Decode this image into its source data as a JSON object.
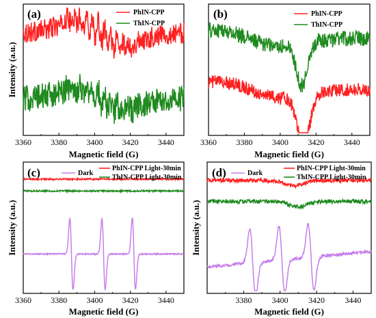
{
  "colors": {
    "red": "#ff2020",
    "green": "#1f8a1f",
    "purple": "#c77dea",
    "axis": "#000000"
  },
  "chart_data": [
    {
      "panel": "(a)",
      "type": "line",
      "xlabel": "Magnetic field  (G)",
      "ylabel": "Intensity (a.u.)",
      "xlim": [
        3360,
        3450
      ],
      "xticks": [
        3360,
        3380,
        3400,
        3420,
        3440
      ],
      "legend_position": "top-right",
      "series": [
        {
          "name": "PhIN-CPP",
          "color_key": "red",
          "signal": "epr_multiplet",
          "center": 3403,
          "spacing": 3.4,
          "lines": 11,
          "width": 1.3,
          "amplitude": 0.75,
          "noise": 0.08,
          "baseline": 0.78
        },
        {
          "name": "ThIN-CPP",
          "color_key": "green",
          "signal": "epr_multiplet",
          "center": 3403,
          "spacing": 3.4,
          "lines": 11,
          "width": 1.3,
          "amplitude": 0.6,
          "noise": 0.1,
          "baseline": 0.28
        }
      ],
      "ylim": [
        0,
        1
      ]
    },
    {
      "panel": "(b)",
      "type": "line",
      "xlabel": "Magnetic field  (G)",
      "ylabel": "",
      "xlim": [
        3360,
        3450
      ],
      "xticks": [
        3360,
        3380,
        3400,
        3420,
        3440
      ],
      "legend_position": "top-right",
      "series": [
        {
          "name": "PhIN-CPP",
          "color_key": "red",
          "signal": "broad_dip",
          "center": 3413,
          "width": 3.5,
          "amplitude": 0.38,
          "noise": 0.05,
          "baseline": 0.35
        },
        {
          "name": "ThIN-CPP",
          "color_key": "green",
          "signal": "broad_dip",
          "center": 3412,
          "width": 3.0,
          "amplitude": 0.32,
          "noise": 0.06,
          "baseline": 0.74
        }
      ],
      "ylim": [
        0,
        1
      ]
    },
    {
      "panel": "(c)",
      "type": "line",
      "xlabel": "Magnetic field  (G)",
      "ylabel": "Intensity (a.u.)",
      "xlim": [
        3360,
        3450
      ],
      "xticks": [
        3360,
        3380,
        3400,
        3420,
        3440
      ],
      "legend_position": "top",
      "series": [
        {
          "name": "Dark",
          "color_key": "purple",
          "signal": "triplet",
          "peaks": [
            3387,
            3405,
            3422
          ],
          "width": 0.9,
          "amplitude": 0.45,
          "noise": 0.005,
          "baseline": 0.3
        },
        {
          "name": "PhIN-CPP Light-30min",
          "color_key": "red",
          "signal": "flat",
          "noise": 0.006,
          "baseline": 0.87
        },
        {
          "name": "ThIN-CPP Light-30min",
          "color_key": "green",
          "signal": "flat",
          "noise": 0.006,
          "baseline": 0.78
        }
      ],
      "ylim": [
        0,
        1
      ]
    },
    {
      "panel": "(d)",
      "type": "line",
      "xlabel": "Magnetic field  (G)",
      "ylabel": "Intensity (a.u.)",
      "xlim": [
        3360,
        3450
      ],
      "xticks": [
        3380,
        3400,
        3420,
        3440
      ],
      "legend_position": "top",
      "series": [
        {
          "name": "Dark",
          "color_key": "purple",
          "signal": "triplet_sloped",
          "peaks": [
            3385,
            3401,
            3417
          ],
          "width": 1.6,
          "amplitude": 0.42,
          "noise": 0.012,
          "baseline": 0.2,
          "slope": 0.12
        },
        {
          "name": "PhIN-CPP Light-30min",
          "color_key": "red",
          "signal": "small_dip",
          "center": 3408,
          "amplitude": 0.04,
          "noise": 0.015,
          "baseline": 0.86
        },
        {
          "name": "ThIN-CPP Light-30min",
          "color_key": "green",
          "signal": "small_dip",
          "center": 3410,
          "amplitude": 0.04,
          "noise": 0.015,
          "baseline": 0.7
        }
      ]
    }
  ]
}
